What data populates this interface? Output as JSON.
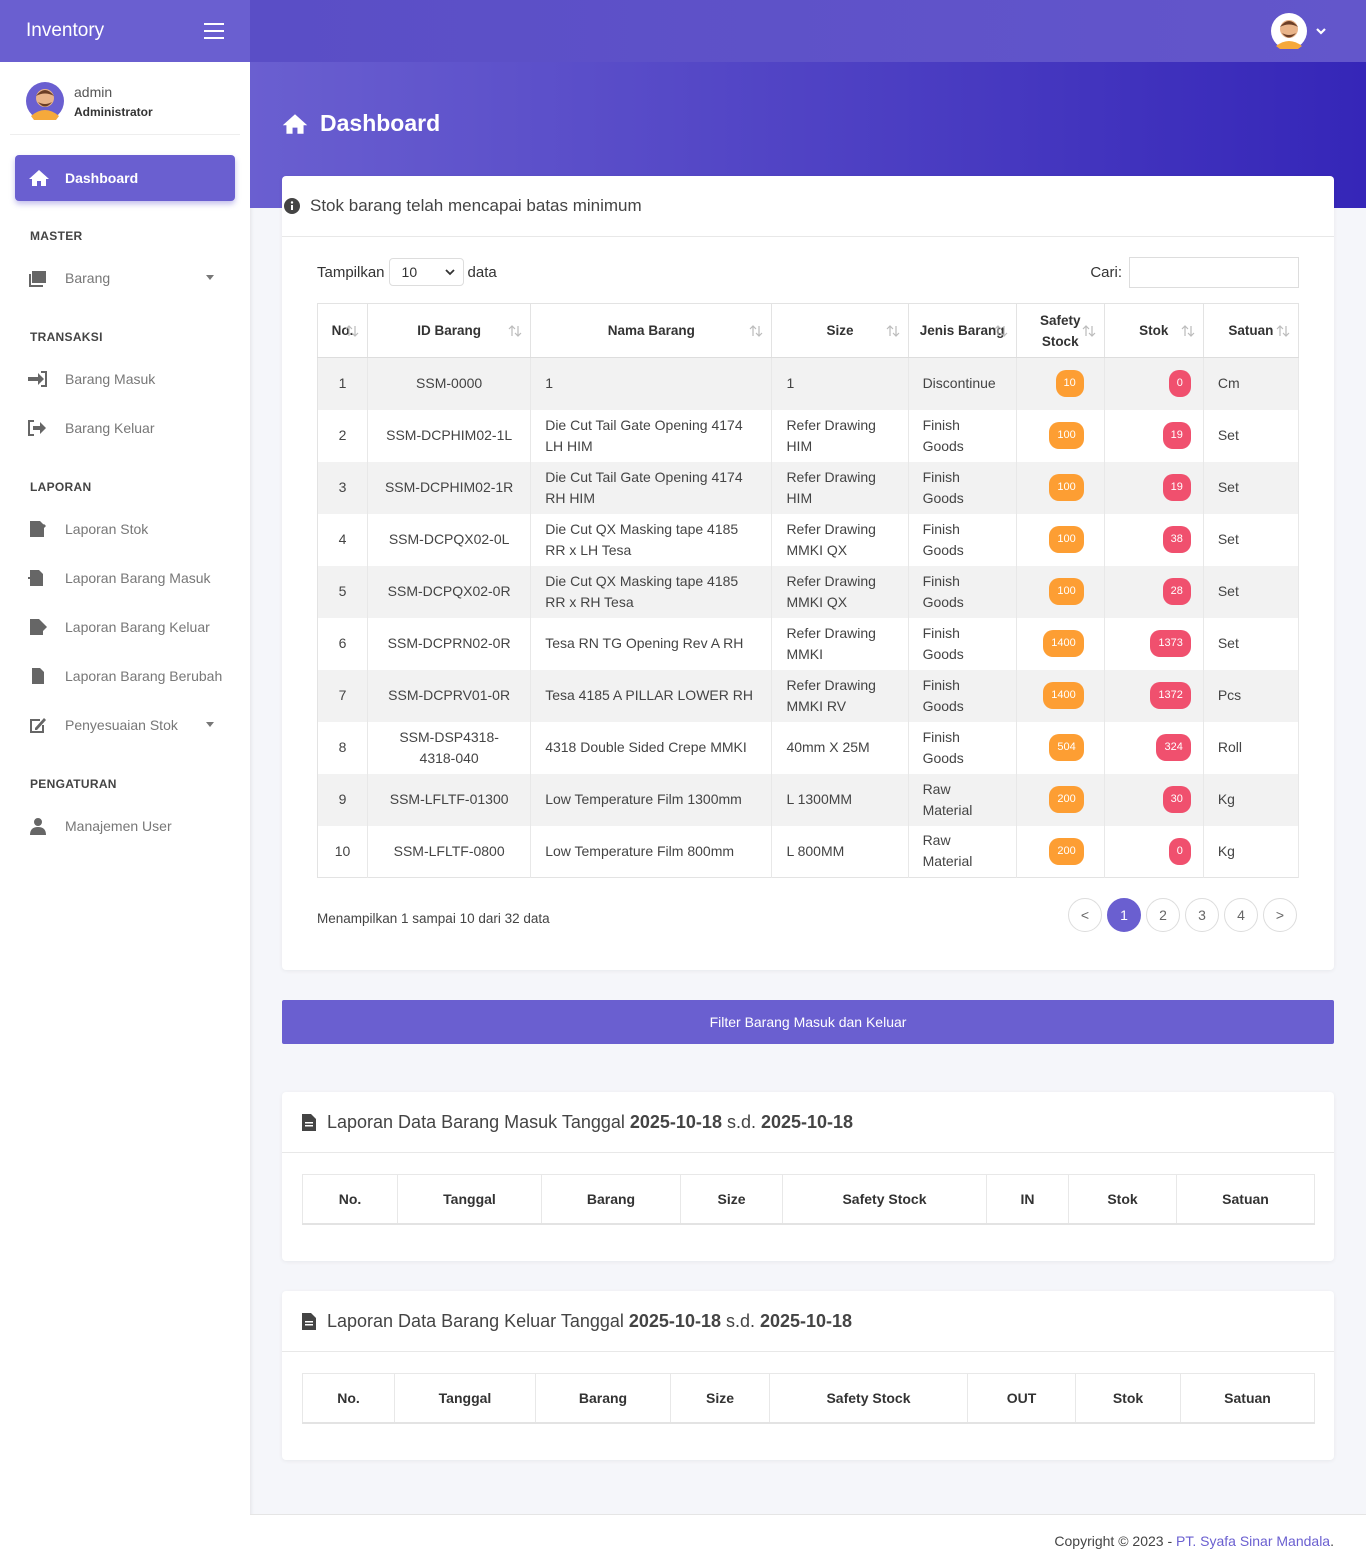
{
  "header": {
    "brand": "Inventory"
  },
  "user": {
    "name": "admin",
    "role": "Administrator"
  },
  "sidebar": {
    "active": "Dashboard",
    "sections": [
      {
        "title": "MASTER",
        "items": [
          "Barang"
        ]
      },
      {
        "title": "TRANSAKSI",
        "items": [
          "Barang Masuk",
          "Barang Keluar"
        ]
      },
      {
        "title": "LAPORAN",
        "items": [
          "Laporan Stok",
          "Laporan Barang Masuk",
          "Laporan Barang Keluar",
          "Laporan Barang Berubah",
          "Penyesuaian Stok"
        ]
      },
      {
        "title": "PENGATURAN",
        "items": [
          "Manajemen User"
        ]
      }
    ]
  },
  "page_title": "Dashboard",
  "stock_card": {
    "title": "Stok barang telah mencapai batas minimum",
    "show_label": "Tampilkan",
    "show_value": "10",
    "show_suffix": "data",
    "search_label": "Cari:",
    "columns": [
      "No.",
      "ID Barang",
      "Nama Barang",
      "Size",
      "Jenis Barang",
      "Safety Stock",
      "Stok",
      "Satuan"
    ],
    "rows": [
      [
        1,
        "SSM-0000",
        "1",
        "1",
        "Discontinue",
        10,
        0,
        "Cm"
      ],
      [
        2,
        "SSM-DCPHIM02-1L",
        "Die Cut Tail Gate Opening 4174 LH HIM",
        "Refer Drawing HIM",
        "Finish Goods",
        100,
        19,
        "Set"
      ],
      [
        3,
        "SSM-DCPHIM02-1R",
        "Die Cut Tail Gate Opening 4174 RH HIM",
        "Refer Drawing HIM",
        "Finish Goods",
        100,
        19,
        "Set"
      ],
      [
        4,
        "SSM-DCPQX02-0L",
        "Die Cut QX Masking tape 4185 RR x LH Tesa",
        "Refer Drawing MMKI QX",
        "Finish Goods",
        100,
        38,
        "Set"
      ],
      [
        5,
        "SSM-DCPQX02-0R",
        "Die Cut QX Masking tape 4185 RR x RH Tesa",
        "Refer Drawing MMKI QX",
        "Finish Goods",
        100,
        28,
        "Set"
      ],
      [
        6,
        "SSM-DCPRN02-0R",
        "Tesa RN TG Opening Rev A RH",
        "Refer Drawing MMKI",
        "Finish Goods",
        1400,
        1373,
        "Set"
      ],
      [
        7,
        "SSM-DCPRV01-0R",
        "Tesa 4185 A PILLAR LOWER RH",
        "Refer Drawing MMKI RV",
        "Finish Goods",
        1400,
        1372,
        "Pcs"
      ],
      [
        8,
        "SSM-DSP4318-4318-040",
        "4318 Double Sided Crepe MMKI",
        "40mm X 25M",
        "Finish Goods",
        504,
        324,
        "Roll"
      ],
      [
        9,
        "SSM-LFLTF-01300",
        "Low Temperature Film 1300mm",
        "L 1300MM",
        "Raw Material",
        200,
        30,
        "Kg"
      ],
      [
        10,
        "SSM-LFLTF-0800",
        "Low Temperature Film 800mm",
        "L 800MM",
        "Raw Material",
        200,
        0,
        "Kg"
      ]
    ],
    "info": "Menampilkan 1 sampai 10 dari 32 data",
    "pages": [
      "<",
      "1",
      "2",
      "3",
      "4",
      ">"
    ]
  },
  "filter_button": "Filter Barang Masuk dan Keluar",
  "reports": [
    {
      "title": "Laporan Data Barang Masuk Tanggal",
      "date_from": "2025-10-18",
      "separator": "s.d.",
      "date_to": "2025-10-18",
      "columns": [
        "No.",
        "Tanggal",
        "Barang",
        "Size",
        "Safety Stock",
        "IN",
        "Stok",
        "Satuan"
      ]
    },
    {
      "title": "Laporan Data Barang Keluar Tanggal",
      "date_from": "2025-10-18",
      "separator": "s.d.",
      "date_to": "2025-10-18",
      "columns": [
        "No.",
        "Tanggal",
        "Barang",
        "Size",
        "Safety Stock",
        "OUT",
        "Stok",
        "Satuan"
      ]
    }
  ],
  "footer": {
    "text": "Copyright © 2023 -",
    "link": "PT. Syafa Sinar Mandala",
    "end": "."
  }
}
